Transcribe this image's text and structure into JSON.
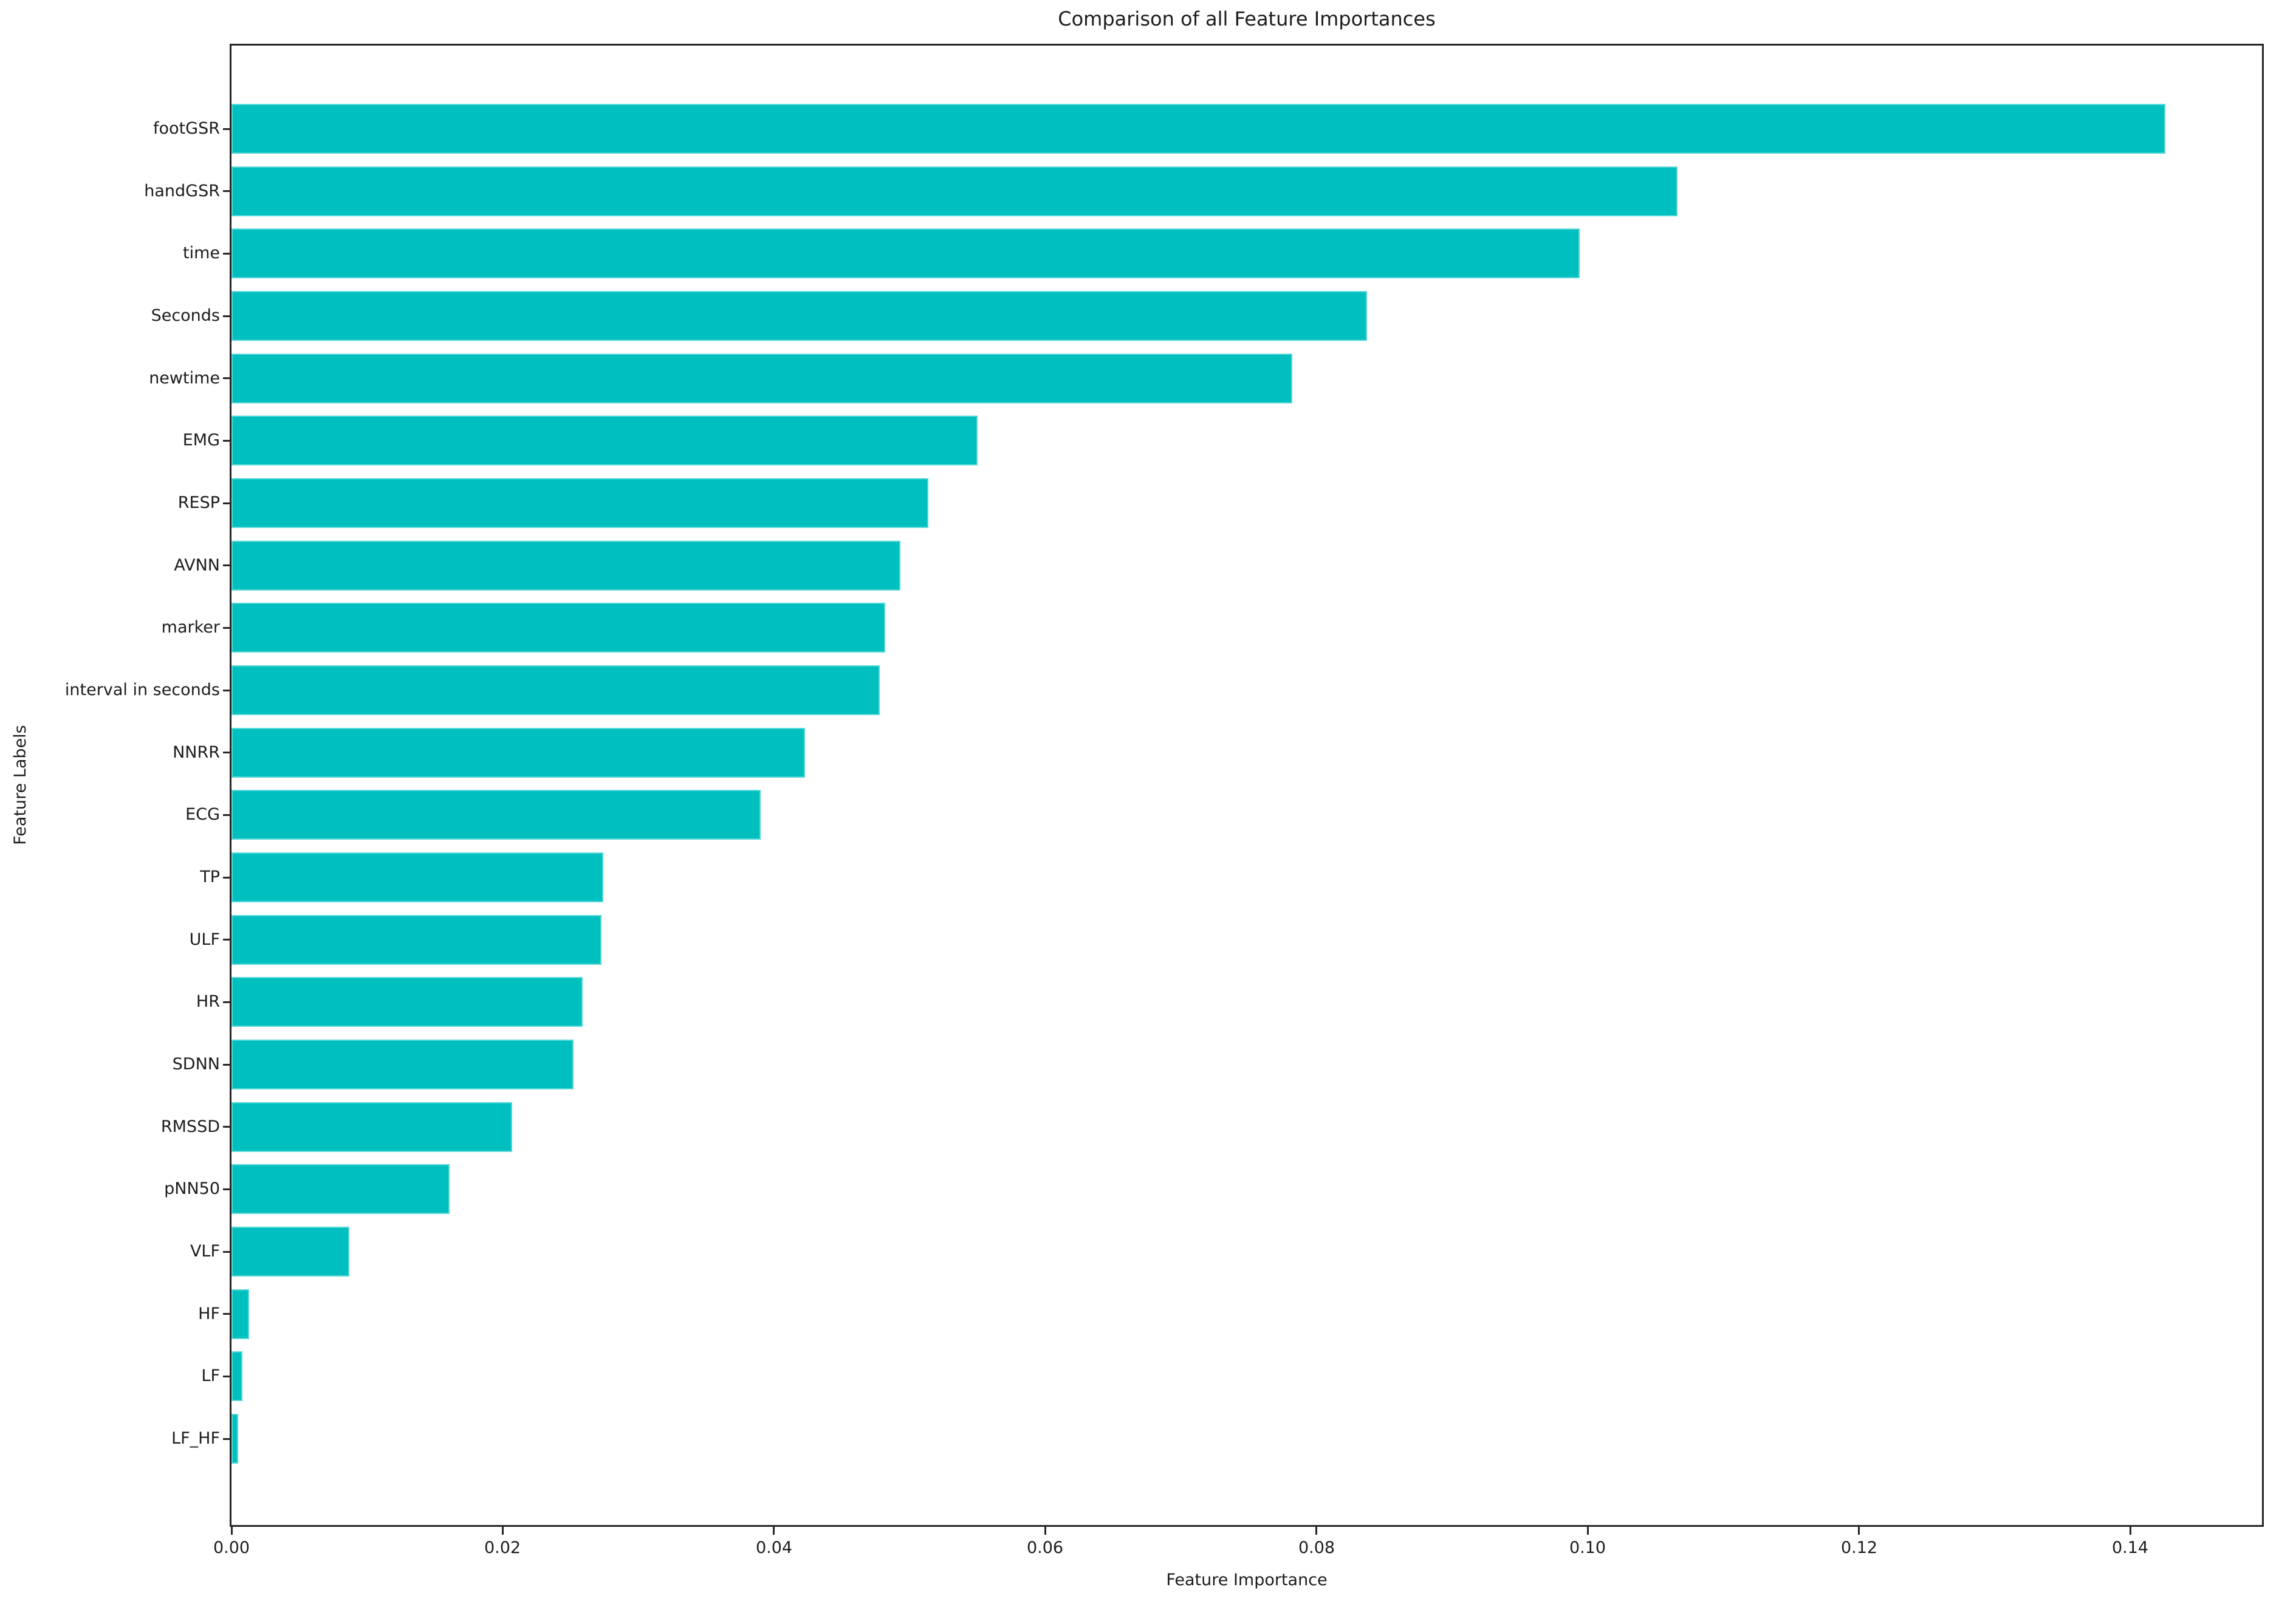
{
  "figure": {
    "title": "Comparison of all Feature Importances",
    "xlabel": "Feature Importance",
    "ylabel": "Feature Labels"
  },
  "chart_data": {
    "type": "bar",
    "orientation": "horizontal",
    "title": "Comparison of all Feature Importances",
    "xlabel": "Feature Importance",
    "ylabel": "Feature Labels",
    "categories": [
      "footGSR",
      "handGSR",
      "time",
      "Seconds",
      "newtime",
      "EMG",
      "RESP",
      "AVNN",
      "marker",
      "interval in seconds",
      "NNRR",
      "ECG",
      "TP",
      "ULF",
      "HR",
      "SDNN",
      "RMSSD",
      "pNN50",
      "VLF",
      "HF",
      "LF",
      "LF_HF"
    ],
    "values": [
      0.1426,
      0.1066,
      0.0994,
      0.0837,
      0.0782,
      0.055,
      0.0514,
      0.0493,
      0.0482,
      0.0478,
      0.0423,
      0.039,
      0.0274,
      0.0273,
      0.0259,
      0.0252,
      0.0207,
      0.0161,
      0.0087,
      0.0013,
      0.0008,
      0.0005
    ],
    "xlim": [
      0,
      0.1497
    ],
    "xtick_values": [
      0.0,
      0.02,
      0.04,
      0.06,
      0.08,
      0.1,
      0.12,
      0.14
    ],
    "xtick_labels": [
      "0.00",
      "0.02",
      "0.04",
      "0.06",
      "0.08",
      "0.10",
      "0.12",
      "0.14"
    ],
    "bar_color": "#00bfbf",
    "bar_edge_color": "#58d8d8",
    "grid": false,
    "legend": "none",
    "background": "#ffffff"
  }
}
